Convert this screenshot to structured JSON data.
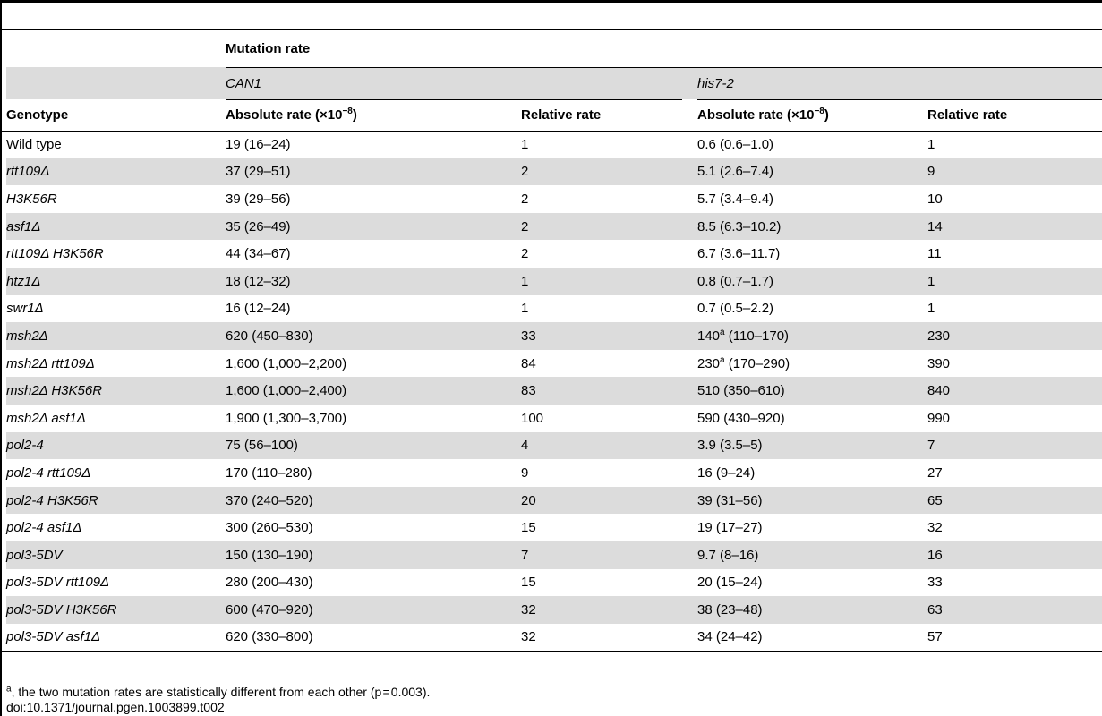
{
  "header": {
    "group": "Mutation rate",
    "can1": "CAN1",
    "his7": "his7-2",
    "genotype": "Genotype",
    "abs_label": "Absolute rate (×10",
    "abs_exp": "−8",
    "abs_close": ")",
    "rel_label": "Relative rate"
  },
  "rows": [
    {
      "genotype": "Wild type",
      "italic": false,
      "can_abs": "19 (16–24)",
      "can_rel": "1",
      "his_abs": "0.6 (0.6–1.0)",
      "his_sup": "",
      "his_rel": "1"
    },
    {
      "genotype": "rtt109Δ",
      "italic": true,
      "can_abs": "37 (29–51)",
      "can_rel": "2",
      "his_abs": "5.1 (2.6–7.4)",
      "his_sup": "",
      "his_rel": "9"
    },
    {
      "genotype": "H3K56R",
      "italic": true,
      "can_abs": "39 (29–56)",
      "can_rel": "2",
      "his_abs": "5.7 (3.4–9.4)",
      "his_sup": "",
      "his_rel": "10"
    },
    {
      "genotype": "asf1Δ",
      "italic": true,
      "can_abs": "35 (26–49)",
      "can_rel": "2",
      "his_abs": "8.5 (6.3–10.2)",
      "his_sup": "",
      "his_rel": "14"
    },
    {
      "genotype": "rtt109Δ H3K56R",
      "italic": true,
      "can_abs": "44 (34–67)",
      "can_rel": "2",
      "his_abs": "6.7 (3.6–11.7)",
      "his_sup": "",
      "his_rel": "11"
    },
    {
      "genotype": "htz1Δ",
      "italic": true,
      "can_abs": "18 (12–32)",
      "can_rel": "1",
      "his_abs": "0.8 (0.7–1.7)",
      "his_sup": "",
      "his_rel": "1"
    },
    {
      "genotype": "swr1Δ",
      "italic": true,
      "can_abs": "16 (12–24)",
      "can_rel": "1",
      "his_abs": "0.7 (0.5–2.2)",
      "his_sup": "",
      "his_rel": "1"
    },
    {
      "genotype": "msh2Δ",
      "italic": true,
      "can_abs": "620 (450–830)",
      "can_rel": "33",
      "his_abs": "140",
      "his_sup": "a",
      "his_abs_tail": " (110–170)",
      "his_rel": "230"
    },
    {
      "genotype": "msh2Δ rtt109Δ",
      "italic": true,
      "can_abs": "1,600 (1,000–2,200)",
      "can_rel": "84",
      "his_abs": "230",
      "his_sup": "a",
      "his_abs_tail": " (170–290)",
      "his_rel": "390"
    },
    {
      "genotype": "msh2Δ H3K56R",
      "italic": true,
      "can_abs": "1,600 (1,000–2,400)",
      "can_rel": "83",
      "his_abs": "510 (350–610)",
      "his_sup": "",
      "his_rel": "840"
    },
    {
      "genotype": "msh2Δ asf1Δ",
      "italic": true,
      "can_abs": "1,900 (1,300–3,700)",
      "can_rel": "100",
      "his_abs": "590 (430–920)",
      "his_sup": "",
      "his_rel": "990"
    },
    {
      "genotype": "pol2-4",
      "italic": true,
      "can_abs": "75 (56–100)",
      "can_rel": "4",
      "his_abs": "3.9 (3.5–5)",
      "his_sup": "",
      "his_rel": "7"
    },
    {
      "genotype": "pol2-4 rtt109Δ",
      "italic": true,
      "can_abs": "170 (110–280)",
      "can_rel": "9",
      "his_abs": "16 (9–24)",
      "his_sup": "",
      "his_rel": "27"
    },
    {
      "genotype": "pol2-4 H3K56R",
      "italic": true,
      "can_abs": "370 (240–520)",
      "can_rel": "20",
      "his_abs": "39 (31–56)",
      "his_sup": "",
      "his_rel": "65"
    },
    {
      "genotype": "pol2-4 asf1Δ",
      "italic": true,
      "can_abs": "300 (260–530)",
      "can_rel": "15",
      "his_abs": "19 (17–27)",
      "his_sup": "",
      "his_rel": "32"
    },
    {
      "genotype": "pol3-5DV",
      "italic": true,
      "can_abs": "150 (130–190)",
      "can_rel": "7",
      "his_abs": "9.7 (8–16)",
      "his_sup": "",
      "his_rel": "16"
    },
    {
      "genotype": "pol3-5DV rtt109Δ",
      "italic": true,
      "can_abs": "280 (200–430)",
      "can_rel": "15",
      "his_abs": "20 (15–24)",
      "his_sup": "",
      "his_rel": "33"
    },
    {
      "genotype": "pol3-5DV H3K56R",
      "italic": true,
      "can_abs": "600 (470–920)",
      "can_rel": "32",
      "his_abs": "38 (23–48)",
      "his_sup": "",
      "his_rel": "63"
    },
    {
      "genotype": "pol3-5DV asf1Δ",
      "italic": true,
      "can_abs": "620 (330–800)",
      "can_rel": "32",
      "his_abs": "34 (24–42)",
      "his_sup": "",
      "his_rel": "57"
    }
  ],
  "footnote": {
    "mark": "a",
    "text": ", the two mutation rates are statistically different from each other (p = 0.003).",
    "doi": "doi:10.1371/journal.pgen.1003899.t002"
  },
  "colors": {
    "shade": "#dcdcdc",
    "rule": "#000000"
  }
}
